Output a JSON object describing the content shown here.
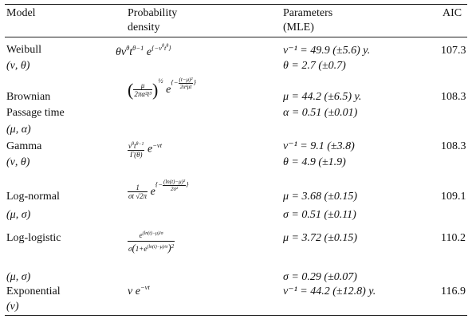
{
  "header": {
    "model": "Model",
    "density_line1": "Probability",
    "density_line2": "density",
    "params_line1": "Parameters",
    "params_line2": "(MLE)",
    "aic": "AIC"
  },
  "rows": [
    {
      "name": "Weibull",
      "params": "(ν, θ)",
      "p1": "ν⁻¹ = 49.9 (±5.6) y.",
      "p2": "θ = 2.7 (±0.7)",
      "aic": "107.3"
    },
    {
      "name": "Brownian",
      "name2": "Passage time",
      "params": "(μ, α)",
      "p1": "μ = 44.2 (±6.5) y.",
      "p2": "α = 0.51 (±0.01)",
      "aic": "108.3"
    },
    {
      "name": "Gamma",
      "params": "(ν, θ)",
      "p1": "ν⁻¹ = 9.1 (±3.8)",
      "p2": "θ = 4.9 (±1.9)",
      "aic": "108.3"
    },
    {
      "name": "Log-normal",
      "params": "(μ, σ)",
      "p1": "μ = 3.68 (±0.15)",
      "p2": "σ = 0.51 (±0.11)",
      "aic": "109.1"
    },
    {
      "name": "Log-logistic",
      "params": "(μ, σ)",
      "p1": "μ = 3.72 (±0.15)",
      "p2": "σ = 0.29 (±0.07)",
      "aic": "110.2"
    },
    {
      "name": "Exponential",
      "params": "(ν)",
      "p1": "ν⁻¹ = 44.2 (±12.8) y.",
      "aic": "116.9"
    }
  ],
  "formulas": {
    "weibull": "θν^θ t^(θ−1) e^{−ν^θ t^θ}",
    "brownian": "(μ/(2πα²t³))^(1/2) e^{−(t−μ)²/(2α²μt)}",
    "gamma": "ν^θ t^(θ−1)/Γ(θ) e^(−νt)",
    "lognormal": "1/(σt√(2π)) e^{−(ln(t)−μ)²/(2σ²)}",
    "loglogistic": "e^((ln(t)−μ)/σ) / (σ(1+e^((ln(t)−μ)/σ))²)",
    "exponential": "ν e^(−νt)"
  }
}
